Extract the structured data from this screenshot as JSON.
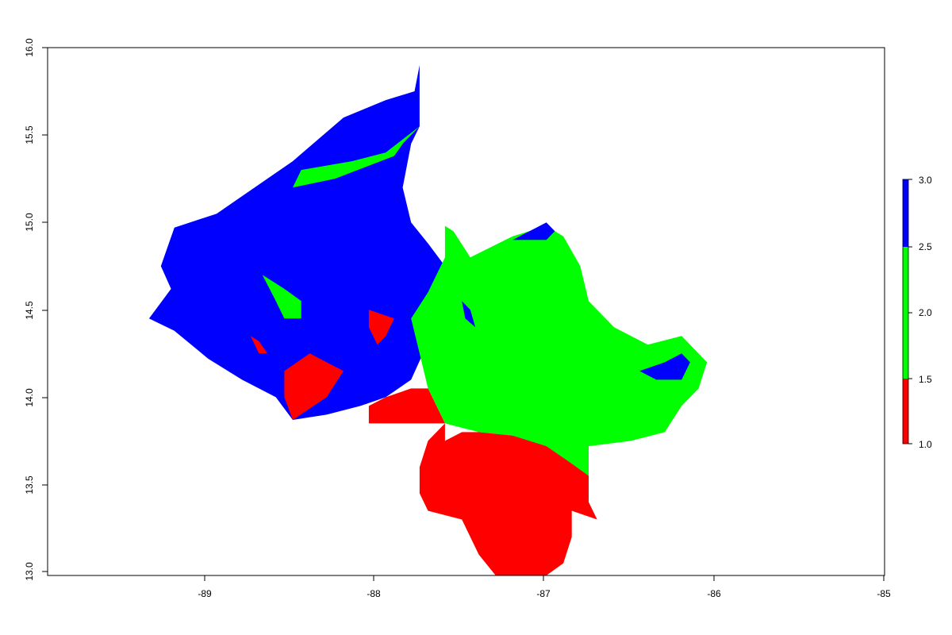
{
  "chart_data": {
    "type": "heatmap",
    "title": "",
    "xlabel": "",
    "ylabel": "",
    "xlim": [
      -89.95,
      -85
    ],
    "ylim": [
      12.98,
      16
    ],
    "x_ticks": [
      "-89",
      "-88",
      "-87",
      "-86",
      "-85"
    ],
    "y_ticks": [
      "13.0",
      "13.5",
      "14.0",
      "14.5",
      "15.0",
      "15.5",
      "16.0"
    ],
    "x_tick_values": [
      -89,
      -88,
      -87,
      -86,
      -85
    ],
    "y_tick_values": [
      13.0,
      13.5,
      14.0,
      14.5,
      15.0,
      15.5,
      16.0
    ],
    "grid": false,
    "legend": {
      "position": "right",
      "type": "colorbar",
      "labels": [
        "3.0",
        "2.5",
        "2.0",
        "1.5",
        "1.0"
      ],
      "label_values": [
        3.0,
        2.5,
        2.0,
        1.5,
        1.0
      ],
      "classes": [
        {
          "range": [
            1.0,
            1.5
          ],
          "color": "#ff0000"
        },
        {
          "range": [
            1.5,
            2.5
          ],
          "color": "#00ff00"
        },
        {
          "range": [
            2.5,
            3.0
          ],
          "color": "#0000ff"
        }
      ]
    },
    "regions": [
      {
        "class": 3,
        "color": "#0000ff",
        "polygon": [
          [
            -87.75,
            15.9
          ],
          [
            -87.78,
            15.75
          ],
          [
            -87.95,
            15.7
          ],
          [
            -88.2,
            15.6
          ],
          [
            -88.5,
            15.35
          ],
          [
            -88.95,
            15.05
          ],
          [
            -89.2,
            14.97
          ],
          [
            -89.28,
            14.75
          ],
          [
            -89.22,
            14.62
          ],
          [
            -89.35,
            14.45
          ],
          [
            -89.2,
            14.38
          ],
          [
            -89.0,
            14.22
          ],
          [
            -88.8,
            14.1
          ],
          [
            -88.6,
            14.0
          ],
          [
            -88.5,
            13.87
          ],
          [
            -88.3,
            13.9
          ],
          [
            -88.1,
            13.95
          ],
          [
            -87.95,
            14.0
          ],
          [
            -87.8,
            14.1
          ],
          [
            -87.73,
            14.25
          ],
          [
            -87.7,
            14.4
          ],
          [
            -87.6,
            14.55
          ],
          [
            -87.6,
            14.75
          ],
          [
            -87.7,
            14.88
          ],
          [
            -87.8,
            15.0
          ],
          [
            -87.85,
            15.2
          ],
          [
            -87.8,
            15.45
          ],
          [
            -87.75,
            15.55
          ],
          [
            -87.75,
            15.9
          ]
        ]
      },
      {
        "class": 2,
        "color": "#00ff00",
        "polygon": [
          [
            -87.75,
            15.55
          ],
          [
            -87.85,
            15.45
          ],
          [
            -87.9,
            15.38
          ],
          [
            -88.25,
            15.25
          ],
          [
            -88.5,
            15.2
          ],
          [
            -88.45,
            15.3
          ],
          [
            -88.15,
            15.35
          ],
          [
            -87.95,
            15.4
          ],
          [
            -87.75,
            15.55
          ]
        ]
      },
      {
        "class": 2,
        "color": "#00ff00",
        "polygon": [
          [
            -87.6,
            14.98
          ],
          [
            -87.55,
            14.95
          ],
          [
            -87.45,
            14.8
          ],
          [
            -87.2,
            14.92
          ],
          [
            -87.0,
            14.98
          ],
          [
            -86.9,
            14.92
          ],
          [
            -86.8,
            14.75
          ],
          [
            -86.75,
            14.55
          ],
          [
            -86.6,
            14.4
          ],
          [
            -86.4,
            14.3
          ],
          [
            -86.2,
            14.35
          ],
          [
            -86.05,
            14.2
          ],
          [
            -86.1,
            14.05
          ],
          [
            -86.2,
            13.95
          ],
          [
            -86.3,
            13.8
          ],
          [
            -86.5,
            13.75
          ],
          [
            -86.75,
            13.72
          ],
          [
            -86.75,
            13.4
          ],
          [
            -86.85,
            13.45
          ],
          [
            -86.85,
            13.6
          ],
          [
            -87.0,
            13.7
          ],
          [
            -87.2,
            13.78
          ],
          [
            -87.4,
            13.8
          ],
          [
            -87.6,
            13.85
          ],
          [
            -87.7,
            14.05
          ],
          [
            -87.75,
            14.25
          ],
          [
            -87.8,
            14.45
          ],
          [
            -87.7,
            14.6
          ],
          [
            -87.6,
            14.8
          ],
          [
            -87.6,
            14.98
          ]
        ]
      },
      {
        "class": 2,
        "color": "#00ff00",
        "polygon": [
          [
            -88.68,
            14.7
          ],
          [
            -88.6,
            14.55
          ],
          [
            -88.55,
            14.45
          ],
          [
            -88.45,
            14.45
          ],
          [
            -88.45,
            14.55
          ],
          [
            -88.55,
            14.62
          ],
          [
            -88.68,
            14.7
          ]
        ]
      },
      {
        "class": 3,
        "color": "#0000ff",
        "polygon": [
          [
            -86.2,
            14.25
          ],
          [
            -86.3,
            14.2
          ],
          [
            -86.45,
            14.15
          ],
          [
            -86.35,
            14.1
          ],
          [
            -86.2,
            14.1
          ],
          [
            -86.15,
            14.2
          ],
          [
            -86.2,
            14.25
          ]
        ]
      },
      {
        "class": 3,
        "color": "#0000ff",
        "polygon": [
          [
            -87.0,
            15.0
          ],
          [
            -87.1,
            14.95
          ],
          [
            -87.2,
            14.9
          ],
          [
            -87.0,
            14.9
          ],
          [
            -86.95,
            14.95
          ],
          [
            -87.0,
            15.0
          ]
        ]
      },
      {
        "class": 3,
        "color": "#0000ff",
        "polygon": [
          [
            -87.5,
            14.55
          ],
          [
            -87.48,
            14.45
          ],
          [
            -87.42,
            14.4
          ],
          [
            -87.45,
            14.5
          ],
          [
            -87.5,
            14.55
          ]
        ]
      },
      {
        "class": 1,
        "color": "#ff0000",
        "polygon": [
          [
            -88.55,
            14.15
          ],
          [
            -88.4,
            14.25
          ],
          [
            -88.3,
            14.2
          ],
          [
            -88.2,
            14.15
          ],
          [
            -88.3,
            14.0
          ],
          [
            -88.5,
            13.87
          ],
          [
            -88.55,
            14.0
          ],
          [
            -88.55,
            14.15
          ]
        ]
      },
      {
        "class": 1,
        "color": "#ff0000",
        "polygon": [
          [
            -88.05,
            13.95
          ],
          [
            -87.95,
            14.0
          ],
          [
            -87.8,
            14.05
          ],
          [
            -87.7,
            14.05
          ],
          [
            -87.6,
            13.85
          ],
          [
            -87.6,
            13.75
          ],
          [
            -87.5,
            13.8
          ],
          [
            -87.4,
            13.8
          ],
          [
            -87.2,
            13.78
          ],
          [
            -87.0,
            13.72
          ],
          [
            -86.85,
            13.62
          ],
          [
            -86.75,
            13.55
          ],
          [
            -86.75,
            13.4
          ],
          [
            -86.7,
            13.3
          ],
          [
            -86.85,
            13.35
          ],
          [
            -86.85,
            13.2
          ],
          [
            -86.9,
            13.05
          ],
          [
            -87.0,
            12.98
          ],
          [
            -87.3,
            12.98
          ],
          [
            -87.4,
            13.1
          ],
          [
            -87.5,
            13.3
          ],
          [
            -87.7,
            13.35
          ],
          [
            -87.75,
            13.45
          ],
          [
            -87.75,
            13.6
          ],
          [
            -87.7,
            13.75
          ],
          [
            -87.6,
            13.85
          ],
          [
            -87.8,
            13.85
          ],
          [
            -88.05,
            13.85
          ],
          [
            -88.05,
            13.95
          ]
        ]
      },
      {
        "class": 1,
        "color": "#ff0000",
        "polygon": [
          [
            -88.75,
            14.35
          ],
          [
            -88.7,
            14.25
          ],
          [
            -88.65,
            14.25
          ],
          [
            -88.7,
            14.32
          ],
          [
            -88.75,
            14.35
          ]
        ]
      },
      {
        "class": 1,
        "color": "#ff0000",
        "polygon": [
          [
            -88.05,
            14.5
          ],
          [
            -87.9,
            14.45
          ],
          [
            -87.95,
            14.35
          ],
          [
            -88.0,
            14.3
          ],
          [
            -88.05,
            14.4
          ],
          [
            -88.05,
            14.5
          ]
        ]
      }
    ]
  }
}
